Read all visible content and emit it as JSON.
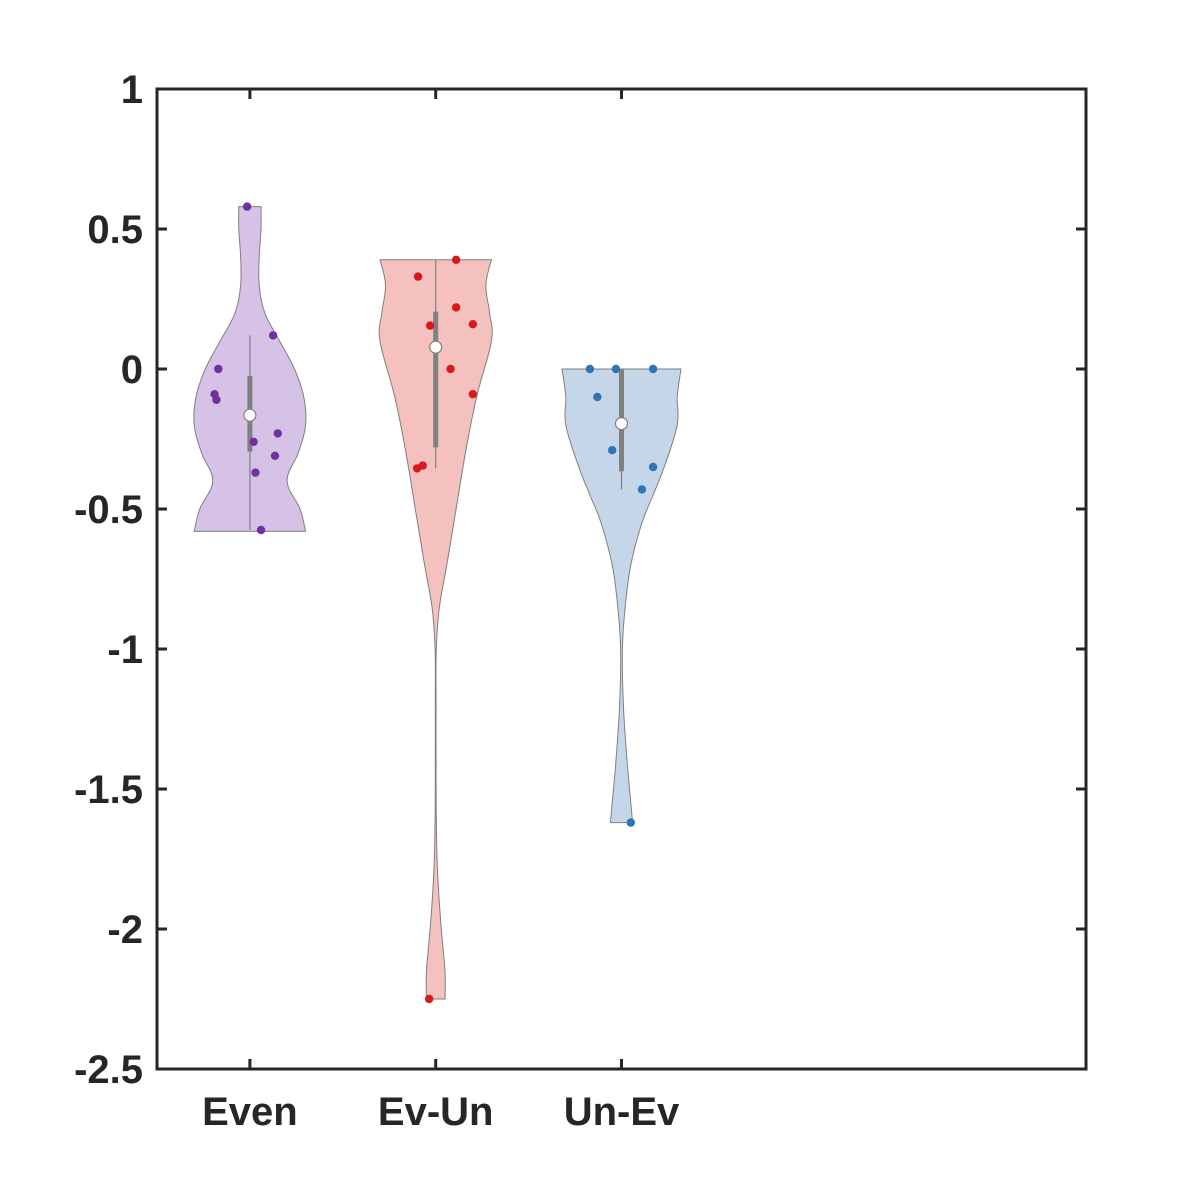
{
  "chart_data": {
    "type": "violin",
    "title": "",
    "xlabel": "",
    "ylabel": "",
    "ylim": [
      -2.5,
      1
    ],
    "yticks": [
      1,
      0.5,
      0,
      -0.5,
      -1,
      -1.5,
      -2,
      -2.5
    ],
    "ytick_labels": [
      "1",
      "0.5",
      "0",
      "-0.5",
      "-1",
      "-1.5",
      "-2",
      "-2.5"
    ],
    "xlim": [
      0.5,
      5.5
    ],
    "categories": [
      "Even",
      "Ev-Un",
      "Un-Ev"
    ],
    "grid": false,
    "series": [
      {
        "category": "Even",
        "x": 1,
        "fill_color": "#d5c2e6",
        "point_color": "#7030a0",
        "points": [
          {
            "x": 0.985,
            "y": 0.58
          },
          {
            "x": 1.125,
            "y": 0.12
          },
          {
            "x": 0.83,
            "y": 0.0
          },
          {
            "x": 0.81,
            "y": -0.09
          },
          {
            "x": 0.82,
            "y": -0.11
          },
          {
            "x": 1.15,
            "y": -0.23
          },
          {
            "x": 1.02,
            "y": -0.26
          },
          {
            "x": 1.135,
            "y": -0.31
          },
          {
            "x": 1.03,
            "y": -0.37
          },
          {
            "x": 1.06,
            "y": -0.575
          }
        ],
        "median": -0.165,
        "q1": -0.295,
        "q3": -0.025,
        "whisker_low": -0.575,
        "whisker_high": 0.12,
        "density": [
          {
            "y": -0.58,
            "w": 0.3
          },
          {
            "y": -0.5,
            "w": 0.27
          },
          {
            "y": -0.4,
            "w": 0.2
          },
          {
            "y": -0.3,
            "w": 0.26
          },
          {
            "y": -0.2,
            "w": 0.3
          },
          {
            "y": -0.1,
            "w": 0.29
          },
          {
            "y": 0.0,
            "w": 0.24
          },
          {
            "y": 0.1,
            "w": 0.16
          },
          {
            "y": 0.2,
            "w": 0.08
          },
          {
            "y": 0.3,
            "w": 0.05
          },
          {
            "y": 0.4,
            "w": 0.05
          },
          {
            "y": 0.5,
            "w": 0.06
          },
          {
            "y": 0.58,
            "w": 0.06
          }
        ]
      },
      {
        "category": "Ev-Un",
        "x": 2,
        "fill_color": "#f4c1bf",
        "point_color": "#d7191c",
        "points": [
          {
            "x": 2.11,
            "y": 0.39
          },
          {
            "x": 1.905,
            "y": 0.33
          },
          {
            "x": 2.11,
            "y": 0.22
          },
          {
            "x": 2.2,
            "y": 0.16
          },
          {
            "x": 1.97,
            "y": 0.155
          },
          {
            "x": 2.08,
            "y": 0.0
          },
          {
            "x": 2.2,
            "y": -0.09
          },
          {
            "x": 1.93,
            "y": -0.345
          },
          {
            "x": 1.9,
            "y": -0.355
          },
          {
            "x": 1.965,
            "y": -2.25
          }
        ],
        "median": 0.078,
        "q1": -0.28,
        "q3": 0.205,
        "whisker_low": -0.355,
        "whisker_high": 0.39,
        "density": [
          {
            "y": -2.25,
            "w": 0.05
          },
          {
            "y": -2.15,
            "w": 0.05
          },
          {
            "y": -2.0,
            "w": 0.03
          },
          {
            "y": -1.8,
            "w": 0.01
          },
          {
            "y": -1.6,
            "w": 0.003
          },
          {
            "y": -1.4,
            "w": 0.002
          },
          {
            "y": -1.2,
            "w": 0.002
          },
          {
            "y": -1.0,
            "w": 0.003
          },
          {
            "y": -0.85,
            "w": 0.02
          },
          {
            "y": -0.7,
            "w": 0.06
          },
          {
            "y": -0.5,
            "w": 0.11
          },
          {
            "y": -0.3,
            "w": 0.16
          },
          {
            "y": -0.1,
            "w": 0.22
          },
          {
            "y": 0.1,
            "w": 0.3
          },
          {
            "y": 0.2,
            "w": 0.29
          },
          {
            "y": 0.3,
            "w": 0.27
          },
          {
            "y": 0.39,
            "w": 0.3
          }
        ]
      },
      {
        "category": "Un-Ev",
        "x": 3,
        "fill_color": "#c5d6e9",
        "point_color": "#2e75b6",
        "points": [
          {
            "x": 2.83,
            "y": 0.0
          },
          {
            "x": 2.97,
            "y": 0.0
          },
          {
            "x": 3.17,
            "y": 0.0
          },
          {
            "x": 2.87,
            "y": -0.1
          },
          {
            "x": 2.95,
            "y": -0.29
          },
          {
            "x": 3.17,
            "y": -0.35
          },
          {
            "x": 3.11,
            "y": -0.43
          },
          {
            "x": 3.05,
            "y": -1.62
          }
        ],
        "median": -0.195,
        "q1": -0.365,
        "q3": 0.0,
        "whisker_low": -0.43,
        "whisker_high": 0.0,
        "density": [
          {
            "y": -1.62,
            "w": 0.06
          },
          {
            "y": -1.55,
            "w": 0.05
          },
          {
            "y": -1.4,
            "w": 0.03
          },
          {
            "y": -1.2,
            "w": 0.01
          },
          {
            "y": -1.0,
            "w": 0.005
          },
          {
            "y": -0.85,
            "w": 0.02
          },
          {
            "y": -0.7,
            "w": 0.05
          },
          {
            "y": -0.55,
            "w": 0.11
          },
          {
            "y": -0.45,
            "w": 0.17
          },
          {
            "y": -0.35,
            "w": 0.23
          },
          {
            "y": -0.2,
            "w": 0.3
          },
          {
            "y": -0.1,
            "w": 0.3
          },
          {
            "y": 0.0,
            "w": 0.32
          }
        ]
      }
    ]
  }
}
